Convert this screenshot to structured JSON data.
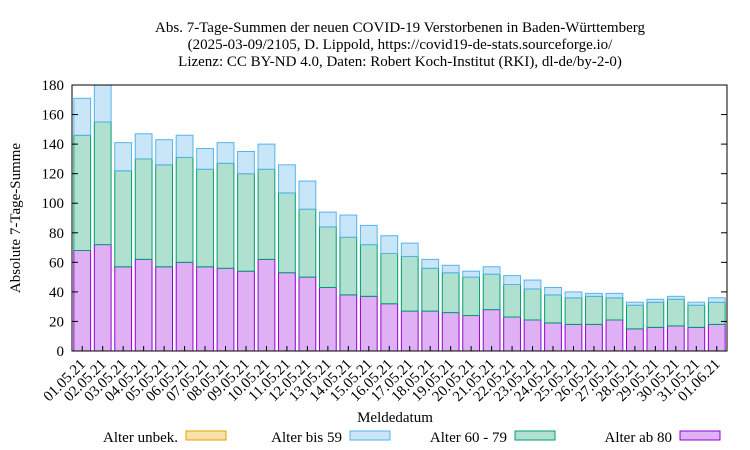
{
  "chart_data": {
    "type": "bar",
    "stacked": true,
    "title_lines": [
      "Abs. 7-Tage-Summen der neuen COVID-19 Verstorbenen in Baden-Württemberg",
      "(2025-03-09/2105, D. Lippold, https://covid19-de-stats.sourceforge.io/",
      "Lizenz: CC BY-ND 4.0, Daten: Robert Koch-Institut (RKI), dl-de/by-2-0)"
    ],
    "xlabel": "Meldedatum",
    "ylabel": "Absolute 7-Tage-Summe",
    "ylim": [
      0,
      180
    ],
    "yticks": [
      0,
      20,
      40,
      60,
      80,
      100,
      120,
      140,
      160,
      180
    ],
    "grid": false,
    "legend_position": "bottom",
    "categories": [
      "01.05.21",
      "02.05.21",
      "03.05.21",
      "04.05.21",
      "05.05.21",
      "06.05.21",
      "07.05.21",
      "08.05.21",
      "09.05.21",
      "10.05.21",
      "11.05.21",
      "12.05.21",
      "13.05.21",
      "14.05.21",
      "15.05.21",
      "16.05.21",
      "17.05.21",
      "18.05.21",
      "19.05.21",
      "20.05.21",
      "21.05.21",
      "22.05.21",
      "23.05.21",
      "24.05.21",
      "25.05.21",
      "26.05.21",
      "27.05.21",
      "28.05.21",
      "29.05.21",
      "30.05.21",
      "31.05.21",
      "01.06.21"
    ],
    "series": [
      {
        "name": "Alter ab 80",
        "fill": "#e0b0f4",
        "stroke": "#9400d3",
        "values": [
          68,
          72,
          57,
          62,
          57,
          60,
          57,
          56,
          54,
          62,
          53,
          50,
          43,
          38,
          37,
          32,
          27,
          27,
          26,
          24,
          28,
          23,
          21,
          19,
          18,
          18,
          21,
          15,
          16,
          17,
          16,
          18
        ]
      },
      {
        "name": "Alter 60 - 79",
        "fill": "#b0e0d0",
        "stroke": "#009e73",
        "values": [
          78,
          83,
          65,
          68,
          69,
          71,
          66,
          71,
          66,
          61,
          54,
          46,
          41,
          39,
          35,
          34,
          37,
          29,
          27,
          26,
          24,
          22,
          21,
          19,
          18,
          19,
          15,
          16,
          17,
          18,
          15,
          15
        ]
      },
      {
        "name": "Alter bis 59",
        "fill": "#c8e6f8",
        "stroke": "#56b4e9",
        "values": [
          25,
          25,
          19,
          17,
          17,
          15,
          14,
          14,
          15,
          17,
          19,
          19,
          10,
          15,
          13,
          12,
          9,
          6,
          5,
          4,
          5,
          6,
          6,
          5,
          4,
          2,
          3,
          2,
          2,
          2,
          2,
          3
        ]
      },
      {
        "name": "Alter unbek.",
        "fill": "#f8e0a8",
        "stroke": "#e69f00",
        "values": [
          0,
          0,
          0,
          0,
          0,
          0,
          0,
          0,
          0,
          0,
          0,
          0,
          0,
          0,
          0,
          0,
          0,
          0,
          0,
          0,
          0,
          0,
          0,
          0,
          0,
          0,
          0,
          0,
          0,
          0,
          0,
          0
        ]
      }
    ],
    "legend_order": [
      "Alter unbek.",
      "Alter bis 59",
      "Alter 60 - 79",
      "Alter ab 80"
    ]
  }
}
